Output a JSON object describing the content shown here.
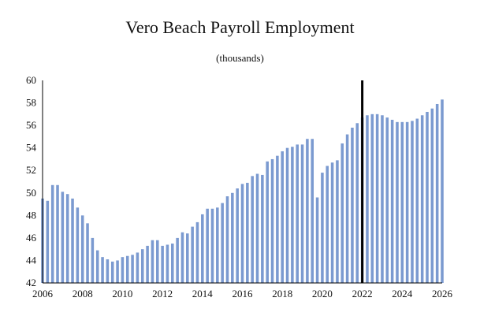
{
  "chart_data": {
    "type": "bar",
    "title": "Vero Beach Payroll Employment",
    "subtitle": "(thousands)",
    "xlabel": "",
    "ylabel": "",
    "ylim": [
      42,
      60
    ],
    "xlim": [
      2006,
      2026
    ],
    "yticks": [
      42,
      44,
      46,
      48,
      50,
      52,
      54,
      56,
      58,
      60
    ],
    "xticks": [
      2006,
      2008,
      2010,
      2012,
      2014,
      2016,
      2018,
      2020,
      2022,
      2024,
      2026
    ],
    "grid": false,
    "legend": "none",
    "bar_color": "#7b9ad0",
    "marker_color": "#000000",
    "forecast_marker_x": 2022,
    "x_start": 2006,
    "x_step": 0.25,
    "values": [
      49.5,
      49.3,
      50.7,
      50.7,
      50.1,
      49.9,
      49.5,
      48.7,
      48.0,
      47.3,
      46.0,
      44.9,
      44.3,
      44.1,
      43.9,
      44.0,
      44.3,
      44.4,
      44.5,
      44.7,
      45.0,
      45.3,
      45.8,
      45.8,
      45.3,
      45.4,
      45.5,
      46.0,
      46.5,
      46.4,
      47.0,
      47.4,
      48.1,
      48.6,
      48.6,
      48.7,
      49.1,
      49.7,
      50.0,
      50.4,
      50.8,
      50.9,
      51.5,
      51.7,
      51.6,
      52.8,
      53.0,
      53.3,
      53.7,
      54.0,
      54.1,
      54.3,
      54.3,
      54.8,
      54.8,
      49.6,
      51.8,
      52.4,
      52.7,
      52.9,
      54.4,
      55.2,
      55.8,
      56.2,
      56.7,
      56.9,
      57.0,
      57.0,
      56.9,
      56.7,
      56.5,
      56.3,
      56.3,
      56.3,
      56.4,
      56.6,
      56.9,
      57.2,
      57.5,
      57.9,
      58.3
    ]
  }
}
